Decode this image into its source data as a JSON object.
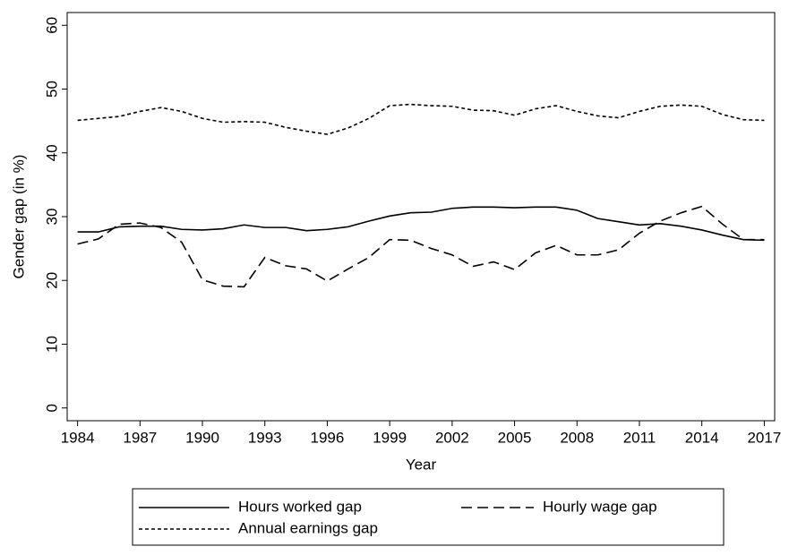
{
  "chart_data": {
    "type": "line",
    "xlabel": "Year",
    "ylabel": "Gender gap (in %)",
    "x": [
      1984,
      1985,
      1986,
      1987,
      1988,
      1989,
      1990,
      1991,
      1992,
      1993,
      1994,
      1995,
      1996,
      1997,
      1998,
      1999,
      2000,
      2001,
      2002,
      2003,
      2004,
      2005,
      2006,
      2007,
      2008,
      2009,
      2010,
      2011,
      2012,
      2013,
      2014,
      2015,
      2016,
      2017
    ],
    "series": [
      {
        "name": "Hours worked gap",
        "color": "#000000",
        "dash": "solid",
        "values": [
          27.6,
          27.6,
          28.4,
          28.5,
          28.5,
          28.0,
          27.9,
          28.1,
          28.7,
          28.3,
          28.3,
          27.8,
          28.0,
          28.4,
          29.3,
          30.1,
          30.6,
          30.7,
          31.3,
          31.5,
          31.5,
          31.4,
          31.5,
          31.5,
          31.0,
          29.7,
          29.2,
          28.7,
          28.9,
          28.5,
          27.9,
          27.1,
          26.4,
          26.3
        ]
      },
      {
        "name": "Hourly wage gap",
        "color": "#000000",
        "dash": "dashed",
        "values": [
          25.7,
          26.5,
          28.8,
          29.0,
          28.3,
          26.0,
          20.1,
          19.1,
          19.0,
          23.6,
          22.3,
          21.8,
          19.9,
          21.8,
          23.6,
          26.4,
          26.3,
          25.0,
          24.0,
          22.2,
          22.9,
          21.7,
          24.3,
          25.5,
          24.0,
          24.0,
          24.8,
          27.4,
          29.3,
          30.6,
          31.6,
          28.8,
          26.4,
          26.4
        ]
      },
      {
        "name": "Annual earnings gap",
        "color": "#000000",
        "dash": "dotted",
        "values": [
          45.1,
          45.4,
          45.7,
          46.5,
          47.1,
          46.5,
          45.4,
          44.8,
          44.9,
          44.8,
          44.0,
          43.4,
          42.9,
          43.9,
          45.4,
          47.4,
          47.6,
          47.4,
          47.3,
          46.7,
          46.6,
          45.9,
          46.9,
          47.4,
          46.5,
          45.8,
          45.5,
          46.5,
          47.3,
          47.5,
          47.3,
          46.0,
          45.2,
          45.1
        ]
      }
    ],
    "xlim": [
      1983.5,
      2017.5
    ],
    "xticks": [
      1984,
      1987,
      1990,
      1993,
      1996,
      1999,
      2002,
      2005,
      2008,
      2011,
      2014,
      2017
    ],
    "ylim": [
      -2,
      62
    ],
    "yticks": [
      0,
      10,
      20,
      30,
      40,
      50,
      60
    ],
    "grid": false,
    "legend": "bottom"
  }
}
